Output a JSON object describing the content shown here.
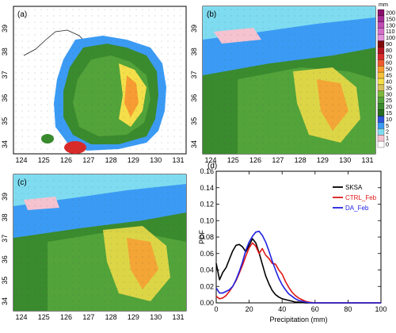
{
  "colorbar": {
    "unit": "mm",
    "levels": [
      "200",
      "150",
      "130",
      "110",
      "100",
      "90",
      "80",
      "70",
      "60",
      "50",
      "45",
      "40",
      "35",
      "30",
      "25",
      "20",
      "15",
      "10",
      "5",
      "2",
      "1",
      "0"
    ],
    "colors": [
      "#8a0f6a",
      "#a52b95",
      "#bf4cb4",
      "#d36fcb",
      "#e28fdc",
      "#7f0a0a",
      "#b3141f",
      "#d92a2a",
      "#f05a2f",
      "#f79c32",
      "#f8c13a",
      "#f4df4a",
      "#d6c05a",
      "#7dba3c",
      "#52a33a",
      "#3a8a2e",
      "#2a6c1e",
      "#2e53d9",
      "#3b9bf4",
      "#7fdcf0",
      "#f5c2d0",
      "#ffffff"
    ]
  },
  "maps": {
    "x_ticks": [
      "124",
      "125",
      "126",
      "127",
      "128",
      "129",
      "130",
      "131"
    ],
    "y_ticks": [
      "39",
      "38",
      "37",
      "36",
      "35",
      "34"
    ],
    "labels": [
      "(a)",
      "(b)",
      "(c)"
    ]
  },
  "chart_data": {
    "type": "line",
    "label": "(d)",
    "xlabel": "Precipitation (mm)",
    "ylabel": "PDF",
    "xlim": [
      0,
      100
    ],
    "ylim": [
      0,
      0.16
    ],
    "x_ticks": [
      "0",
      "20",
      "40",
      "60",
      "80",
      "100"
    ],
    "y_ticks": [
      "0.00",
      "0.02",
      "0.04",
      "0.06",
      "0.08",
      "0.10",
      "0.12",
      "0.14",
      "0.16"
    ],
    "x": [
      0,
      2,
      4,
      6,
      8,
      10,
      12,
      14,
      16,
      18,
      20,
      22,
      24,
      26,
      28,
      30,
      32,
      34,
      36,
      38,
      40,
      42,
      44,
      46,
      48,
      50,
      52,
      54,
      56,
      58,
      60,
      62,
      64,
      66,
      68,
      70,
      72,
      74,
      76,
      78,
      80,
      82,
      84,
      86,
      88,
      90,
      92,
      94,
      96,
      98,
      100
    ],
    "series": [
      {
        "name": "SKSA",
        "color": "#000000",
        "values": [
          0.048,
          0.028,
          0.037,
          0.043,
          0.053,
          0.063,
          0.07,
          0.071,
          0.068,
          0.062,
          0.07,
          0.078,
          0.073,
          0.061,
          0.047,
          0.033,
          0.023,
          0.015,
          0.01,
          0.007,
          0.005,
          0.004,
          0.003,
          0.002,
          0.001,
          0.001,
          0.0005,
          0,
          0,
          0,
          0,
          0,
          0,
          0,
          0,
          0,
          0,
          0,
          0,
          0,
          0,
          0,
          0,
          0,
          0,
          0,
          0,
          0,
          0,
          0,
          0
        ]
      },
      {
        "name": "CTRL_Feb",
        "color": "#e01818",
        "values": [
          0.008,
          0.005,
          0.006,
          0.009,
          0.014,
          0.02,
          0.027,
          0.036,
          0.046,
          0.057,
          0.067,
          0.073,
          0.069,
          0.06,
          0.066,
          0.058,
          0.054,
          0.048,
          0.047,
          0.04,
          0.035,
          0.026,
          0.019,
          0.013,
          0.009,
          0.006,
          0.004,
          0.002,
          0.001,
          0.0005,
          0,
          0,
          0,
          0,
          0,
          0,
          0,
          0,
          0,
          0,
          0,
          0,
          0,
          0,
          0,
          0,
          0,
          0,
          0,
          0,
          0
        ]
      },
      {
        "name": "DA_Feb",
        "color": "#2020e0",
        "values": [
          0.018,
          0.012,
          0.012,
          0.014,
          0.016,
          0.02,
          0.028,
          0.038,
          0.05,
          0.064,
          0.074,
          0.081,
          0.086,
          0.087,
          0.082,
          0.074,
          0.063,
          0.051,
          0.04,
          0.03,
          0.022,
          0.016,
          0.011,
          0.008,
          0.005,
          0.003,
          0.002,
          0.001,
          0.0005,
          0,
          0,
          0,
          0,
          0,
          0,
          0,
          0,
          0,
          0,
          0,
          0,
          0,
          0,
          0,
          0,
          0,
          0,
          0,
          0,
          0,
          0
        ]
      }
    ],
    "legend_placement": "top-right"
  }
}
